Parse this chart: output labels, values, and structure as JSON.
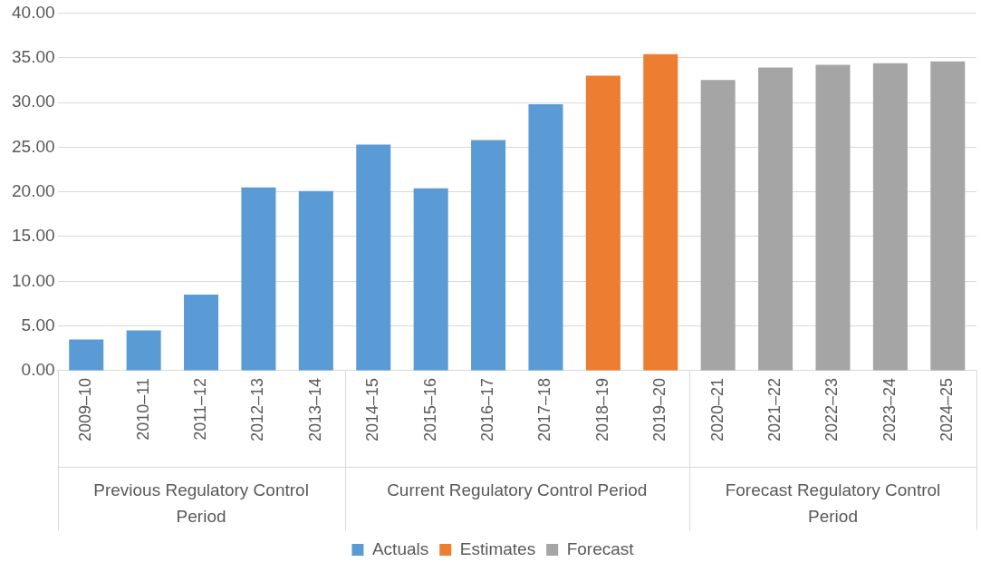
{
  "chart_data": {
    "type": "bar",
    "categories": [
      "2009–10",
      "2010–11",
      "2011–12",
      "2012–13",
      "2013–14",
      "2014–15",
      "2015–16",
      "2016–17",
      "2017–18",
      "2018–19",
      "2019–20",
      "2020–21",
      "2021–22",
      "2022–23",
      "2023–24",
      "2024–25"
    ],
    "series": [
      {
        "name": "Actuals",
        "color": "#5b9bd5",
        "values": [
          3.5,
          4.5,
          8.5,
          20.5,
          20.1,
          25.3,
          20.4,
          25.8,
          29.8,
          null,
          null,
          null,
          null,
          null,
          null,
          null
        ]
      },
      {
        "name": "Estimates",
        "color": "#ed7d31",
        "values": [
          null,
          null,
          null,
          null,
          null,
          null,
          null,
          null,
          null,
          33.0,
          35.4,
          null,
          null,
          null,
          null,
          null
        ]
      },
      {
        "name": "Forecast",
        "color": "#a5a5a5",
        "values": [
          null,
          null,
          null,
          null,
          null,
          null,
          null,
          null,
          null,
          null,
          null,
          32.5,
          33.9,
          34.2,
          34.4,
          34.6
        ]
      }
    ],
    "annotations": [
      "Previous Regulatory Control Period",
      "Current Regulatory Control Period",
      "Forecast Regulatory Control Period"
    ],
    "ylim": [
      0,
      40
    ],
    "yticks": [
      {
        "value": 0,
        "label": "0.00"
      },
      {
        "value": 5,
        "label": "5.00"
      },
      {
        "value": 10,
        "label": "10.00"
      },
      {
        "value": 15,
        "label": "15.00"
      },
      {
        "value": 20,
        "label": "20.00"
      },
      {
        "value": 25,
        "label": "25.00"
      },
      {
        "value": 30,
        "label": "30.00"
      },
      {
        "value": 35,
        "label": "35.00"
      },
      {
        "value": 40,
        "label": "40.00"
      }
    ],
    "grid": "y",
    "legend": "bottom"
  }
}
